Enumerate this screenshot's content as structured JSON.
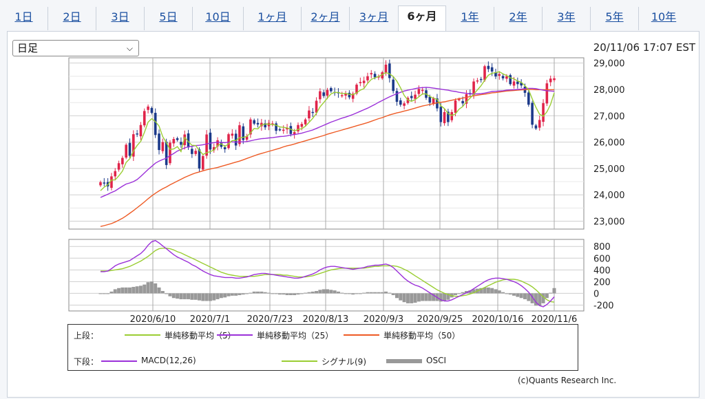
{
  "tabs": [
    {
      "label": "1日",
      "active": false
    },
    {
      "label": "2日",
      "active": false
    },
    {
      "label": "3日",
      "active": false
    },
    {
      "label": "5日",
      "active": false
    },
    {
      "label": "10日",
      "active": false
    },
    {
      "label": "1ヶ月",
      "active": false
    },
    {
      "label": "2ヶ月",
      "active": false
    },
    {
      "label": "3ヶ月",
      "active": false
    },
    {
      "label": "6ヶ月",
      "active": true
    },
    {
      "label": "1年",
      "active": false
    },
    {
      "label": "2年",
      "active": false
    },
    {
      "label": "3年",
      "active": false
    },
    {
      "label": "5年",
      "active": false
    },
    {
      "label": "10年",
      "active": false
    }
  ],
  "period_select": {
    "value": "日足"
  },
  "timestamp": "20/11/06 17:07 EST",
  "legend": {
    "upper_label": "上段：",
    "lower_label": "下段：",
    "upper_items": [
      "単純移動平均（5）",
      "単純移動平均（25）",
      "単純移動平均（50）"
    ],
    "lower_items": [
      "MACD(12,26)",
      "シグナル(9)",
      "OSCI"
    ]
  },
  "credit": "(c)Quants Research Inc.",
  "colors": {
    "up": "#e0244a",
    "down": "#1c3a8a",
    "ma5": "#9acd32",
    "ma25": "#9b30d9",
    "ma50": "#ee5a24",
    "macd": "#9b30d9",
    "signal": "#9acd32",
    "osci": "#999999"
  },
  "chart_data": [
    {
      "type": "candlestick",
      "title": "",
      "x_tick_labels": [
        "2020/6/10",
        "2020/7/1",
        "2020/7/23",
        "2020/8/13",
        "2020/9/3",
        "2020/9/25",
        "2020/10/16",
        "2020/11/6"
      ],
      "y_tick_labels": [
        "29,000",
        "28,000",
        "27,000",
        "26,000",
        "25,000",
        "24,000",
        "23,000"
      ],
      "ylim": [
        22700,
        29200
      ],
      "grid": true,
      "close": [
        24480,
        24440,
        24320,
        24700,
        24900,
        25200,
        25400,
        25900,
        25480,
        26300,
        26290,
        26650,
        27180,
        27350,
        27110,
        26270,
        25700,
        26000,
        25130,
        25980,
        26120,
        26080,
        25900,
        26290,
        25800,
        25550,
        25670,
        25000,
        25470,
        26290,
        25720,
        25810,
        26070,
        25820,
        25730,
        26300,
        26320,
        25870,
        26640,
        26080,
        26220,
        26860,
        26700,
        26670,
        26730,
        26560,
        26730,
        26710,
        26430,
        26470,
        26470,
        26540,
        26310,
        26380,
        26650,
        26690,
        26860,
        27200,
        27120,
        27570,
        27930,
        27750,
        27980,
        27930,
        27870,
        27850,
        27780,
        27830,
        27700,
        27840,
        28180,
        28280,
        28330,
        28500,
        28620,
        28460,
        28490,
        28650,
        28940,
        28430,
        27940,
        27530,
        27420,
        27470,
        27680,
        27670,
        27800,
        28020,
        27980,
        27680,
        27500,
        27660,
        27280,
        26760,
        27140,
        26760,
        27140,
        27580,
        27630,
        27470,
        27820,
        27850,
        28300,
        28340,
        28390,
        28880,
        28770,
        28680,
        28490,
        28580,
        28420,
        28500,
        28200,
        28300,
        28200,
        28150,
        27870,
        27420,
        26660,
        26520,
        26840,
        27480,
        28230,
        28410,
        28420
      ],
      "series": [
        {
          "name": "単純移動平均（5）",
          "values": [
            24160,
            24290,
            24380,
            24560,
            24570,
            24720,
            24900,
            25230,
            25370,
            25660,
            25870,
            26030,
            26370,
            26760,
            26890,
            26780,
            26610,
            26210,
            25980,
            25720,
            25740,
            25830,
            25640,
            26180,
            26020,
            25880,
            25870,
            25690,
            25530,
            25600,
            25640,
            25700,
            25870,
            25940,
            25830,
            25940,
            26060,
            26060,
            26170,
            26180,
            26220,
            26350,
            26520,
            26500,
            26650,
            26690,
            26680,
            26670,
            26640,
            26580,
            26560,
            26540,
            26490,
            26420,
            26480,
            26510,
            26600,
            26750,
            26900,
            27090,
            27340,
            27500,
            27670,
            27830,
            27890,
            27880,
            27840,
            27850,
            27810,
            27800,
            27870,
            27970,
            28030,
            28230,
            28380,
            28440,
            28490,
            28560,
            28640,
            28590,
            28490,
            28310,
            28060,
            27770,
            27600,
            27550,
            27610,
            27720,
            27830,
            27830,
            27730,
            27670,
            27620,
            27380,
            27270,
            27080,
            27010,
            27070,
            27250,
            27350,
            27530,
            27670,
            27820,
            27980,
            28140,
            28350,
            28540,
            28610,
            28640,
            28670,
            28590,
            28530,
            28440,
            28400,
            28320,
            28270,
            28140,
            27990,
            27640,
            27320,
            27060,
            26980,
            27150,
            27430,
            27870
          ]
        },
        {
          "name": "単純移動平均（25）",
          "values": [
            23900,
            23960,
            24020,
            24090,
            24150,
            24240,
            24330,
            24410,
            24450,
            24500,
            24580,
            24700,
            24830,
            24960,
            25080,
            25200,
            25280,
            25340,
            25390,
            25490,
            25570,
            25660,
            25720,
            25780,
            25820,
            25840,
            25870,
            25880,
            25900,
            25930,
            25960,
            25980,
            26000,
            25990,
            25980,
            26000,
            26010,
            26000,
            26010,
            26010,
            26020,
            26050,
            26080,
            26110,
            26130,
            26140,
            26160,
            26170,
            26190,
            26210,
            26220,
            26240,
            26270,
            26290,
            26310,
            26340,
            26380,
            26420,
            26460,
            26520,
            26580,
            26640,
            26700,
            26760,
            26810,
            26860,
            26910,
            26950,
            27000,
            27050,
            27110,
            27170,
            27230,
            27290,
            27360,
            27430,
            27510,
            27580,
            27650,
            27720,
            27780,
            27840,
            27890,
            27940,
            27970,
            28000,
            28030,
            28060,
            28070,
            28080,
            28070,
            28050,
            28030,
            28010,
            27990,
            27970,
            27940,
            27920,
            27890,
            27870,
            27850,
            27830,
            27830,
            27830,
            27840,
            27860,
            27890,
            27920,
            27930,
            27940,
            27950,
            27970,
            27980,
            27990,
            28000,
            28010,
            28030,
            28040,
            28040,
            28030,
            28000,
            27970,
            27950,
            27940,
            27930
          ]
        },
        {
          "name": "単純移動平均（50）",
          "values": [
            22800,
            22830,
            22870,
            22910,
            22970,
            23040,
            23110,
            23200,
            23300,
            23400,
            23510,
            23620,
            23730,
            23850,
            23960,
            24060,
            24150,
            24230,
            24300,
            24380,
            24450,
            24520,
            24590,
            24660,
            24720,
            24780,
            24830,
            24870,
            24910,
            24950,
            24980,
            25010,
            25040,
            25080,
            25120,
            25160,
            25200,
            25240,
            25280,
            25330,
            25380,
            25430,
            25480,
            25530,
            25570,
            25610,
            25650,
            25690,
            25730,
            25770,
            25820,
            25860,
            25890,
            25930,
            25970,
            26010,
            26050,
            26090,
            26130,
            26170,
            26210,
            26250,
            26300,
            26340,
            26380,
            26420,
            26460,
            26500,
            26540,
            26580,
            26620,
            26660,
            26700,
            26740,
            26790,
            26840,
            26890,
            26930,
            26980,
            27030,
            27070,
            27110,
            27140,
            27180,
            27210,
            27250,
            27290,
            27330,
            27370,
            27400,
            27430,
            27460,
            27490,
            27510,
            27530,
            27560,
            27590,
            27620,
            27650,
            27670,
            27700,
            27730,
            27760,
            27780,
            27800,
            27820,
            27840,
            27870,
            27880,
            27900,
            27920,
            27940,
            27950,
            27960,
            27970,
            27980,
            27990,
            28000,
            28000,
            27990,
            27990,
            27990,
            27990,
            27990,
            27990
          ]
        }
      ]
    },
    {
      "type": "line",
      "title": "",
      "y_tick_labels": [
        "800",
        "600",
        "400",
        "200",
        "0",
        "-200"
      ],
      "ylim": [
        -300,
        920
      ],
      "grid": true,
      "series": [
        {
          "name": "MACD(12,26)",
          "values": [
            370,
            370,
            380,
            420,
            470,
            500,
            520,
            540,
            560,
            600,
            640,
            680,
            740,
            820,
            880,
            900,
            860,
            810,
            760,
            710,
            660,
            620,
            590,
            560,
            530,
            490,
            460,
            420,
            380,
            350,
            320,
            300,
            290,
            280,
            270,
            270,
            270,
            260,
            260,
            270,
            280,
            300,
            320,
            330,
            340,
            340,
            330,
            320,
            310,
            300,
            290,
            280,
            270,
            260,
            260,
            270,
            290,
            310,
            330,
            360,
            400,
            430,
            450,
            460,
            460,
            450,
            440,
            430,
            420,
            410,
            420,
            430,
            440,
            460,
            470,
            480,
            480,
            490,
            500,
            480,
            440,
            380,
            320,
            260,
            210,
            170,
            140,
            120,
            90,
            50,
            10,
            -30,
            -70,
            -110,
            -130,
            -130,
            -110,
            -80,
            -50,
            -20,
            10,
            40,
            80,
            120,
            160,
            200,
            230,
            250,
            260,
            260,
            250,
            240,
            220,
            200,
            170,
            130,
            80,
            20,
            -60,
            -150,
            -210,
            -230,
            -190,
            -130,
            -60
          ]
        },
        {
          "name": "シグナル(9)",
          "values": [
            380,
            380,
            380,
            390,
            400,
            410,
            420,
            440,
            460,
            490,
            520,
            550,
            590,
            630,
            680,
            730,
            760,
            770,
            770,
            760,
            740,
            710,
            690,
            660,
            630,
            600,
            570,
            540,
            510,
            480,
            450,
            420,
            390,
            360,
            340,
            320,
            310,
            300,
            290,
            290,
            290,
            290,
            290,
            300,
            310,
            320,
            320,
            320,
            320,
            320,
            310,
            310,
            300,
            290,
            280,
            280,
            280,
            290,
            300,
            320,
            340,
            360,
            380,
            400,
            410,
            420,
            430,
            430,
            430,
            430,
            430,
            430,
            430,
            440,
            450,
            460,
            460,
            470,
            470,
            470,
            470,
            460,
            440,
            410,
            380,
            340,
            300,
            260,
            220,
            180,
            140,
            100,
            60,
            30,
            0,
            -20,
            -40,
            -50,
            -50,
            -40,
            -30,
            -10,
            10,
            40,
            70,
            100,
            130,
            160,
            190,
            210,
            230,
            240,
            240,
            240,
            230,
            210,
            180,
            150,
            110,
            60,
            0,
            -60,
            -110,
            -140,
            -150
          ]
        },
        {
          "name": "OSCI",
          "values": [
            -10,
            -10,
            0,
            30,
            70,
            90,
            100,
            100,
            100,
            110,
            120,
            130,
            150,
            190,
            200,
            170,
            100,
            40,
            -10,
            -50,
            -80,
            -90,
            -100,
            -100,
            -100,
            -110,
            -110,
            -120,
            -130,
            -130,
            -130,
            -120,
            -100,
            -80,
            -70,
            -50,
            -40,
            -40,
            -30,
            -20,
            -10,
            10,
            30,
            30,
            30,
            20,
            10,
            0,
            -10,
            -20,
            -20,
            -30,
            -30,
            -30,
            -20,
            -10,
            10,
            20,
            30,
            40,
            60,
            70,
            70,
            60,
            50,
            30,
            10,
            0,
            -10,
            -20,
            -10,
            0,
            10,
            20,
            20,
            20,
            20,
            20,
            30,
            10,
            -30,
            -80,
            -120,
            -150,
            -170,
            -170,
            -160,
            -140,
            -130,
            -130,
            -130,
            -130,
            -130,
            -140,
            -130,
            -110,
            -70,
            -30,
            0,
            20,
            40,
            50,
            70,
            80,
            90,
            100,
            100,
            90,
            70,
            50,
            20,
            0,
            -20,
            -40,
            -60,
            -80,
            -100,
            -130,
            -170,
            -210,
            -210,
            -170,
            -80,
            10,
            90
          ]
        }
      ]
    }
  ]
}
